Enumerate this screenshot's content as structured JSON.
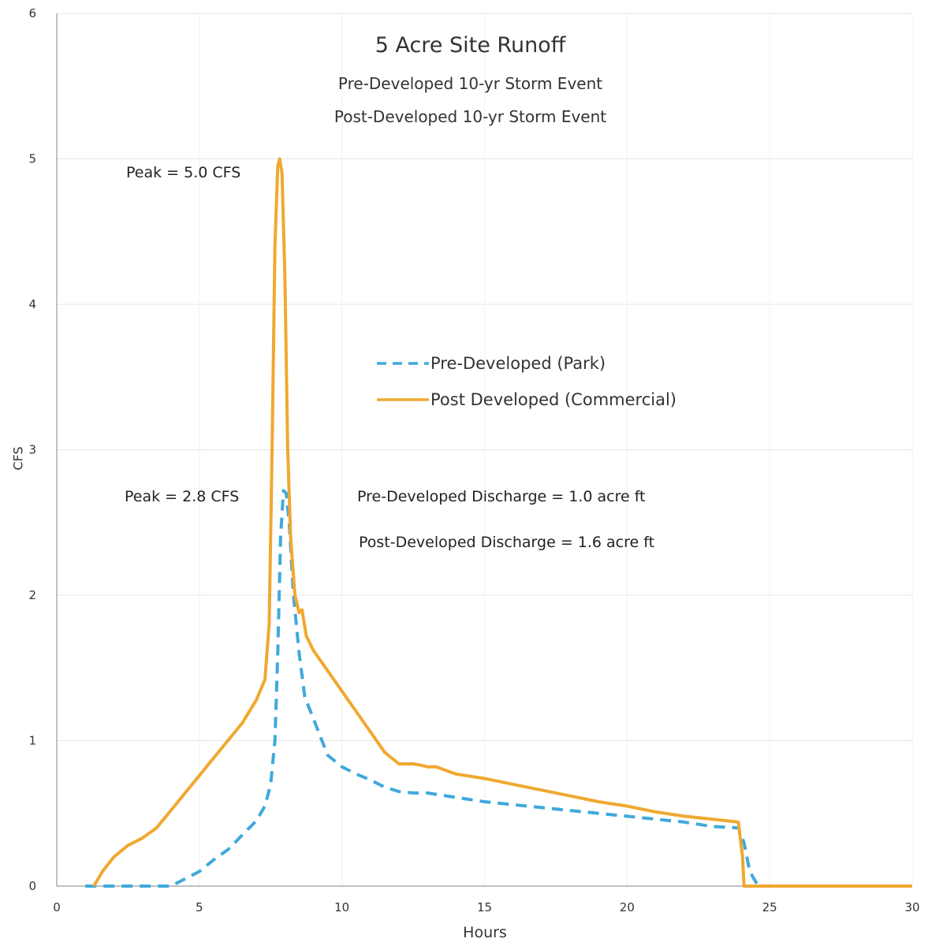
{
  "chart_data": {
    "type": "line",
    "title": "5 Acre Site Runoff",
    "subtitle_lines": [
      "Pre-Developed 10-yr Storm Event",
      "Post-Developed 10-yr Storm Event"
    ],
    "xlabel": "Hours",
    "ylabel": "CFS",
    "xlim": [
      0,
      30
    ],
    "ylim": [
      0,
      6
    ],
    "x_ticks": [
      "0",
      "5",
      "10",
      "15",
      "20",
      "25",
      "30"
    ],
    "y_ticks": [
      "0",
      "1",
      "2",
      "3",
      "4",
      "5",
      "6"
    ],
    "grid": true,
    "legend_position": "center-right",
    "series": [
      {
        "name": "Pre-Developed (Park)",
        "color": "#3fa9dd",
        "style": "dashed",
        "points": [
          [
            1,
            0
          ],
          [
            2,
            0
          ],
          [
            3,
            0
          ],
          [
            4,
            0
          ],
          [
            4.5,
            0.05
          ],
          [
            5,
            0.1
          ],
          [
            5.5,
            0.18
          ],
          [
            6,
            0.25
          ],
          [
            6.5,
            0.35
          ],
          [
            7,
            0.45
          ],
          [
            7.3,
            0.55
          ],
          [
            7.5,
            0.7
          ],
          [
            7.65,
            1.0
          ],
          [
            7.75,
            1.6
          ],
          [
            7.85,
            2.4
          ],
          [
            7.95,
            2.72
          ],
          [
            8.05,
            2.7
          ],
          [
            8.15,
            2.5
          ],
          [
            8.3,
            2.0
          ],
          [
            8.5,
            1.6
          ],
          [
            8.7,
            1.3
          ],
          [
            9,
            1.15
          ],
          [
            9.5,
            0.9
          ],
          [
            10,
            0.82
          ],
          [
            10.5,
            0.77
          ],
          [
            11,
            0.73
          ],
          [
            11.5,
            0.68
          ],
          [
            12,
            0.65
          ],
          [
            12.5,
            0.64
          ],
          [
            13,
            0.64
          ],
          [
            14,
            0.61
          ],
          [
            15,
            0.58
          ],
          [
            16,
            0.56
          ],
          [
            17,
            0.54
          ],
          [
            18,
            0.52
          ],
          [
            19,
            0.5
          ],
          [
            20,
            0.48
          ],
          [
            21,
            0.46
          ],
          [
            22,
            0.44
          ],
          [
            23,
            0.41
          ],
          [
            23.9,
            0.4
          ],
          [
            24.1,
            0.3
          ],
          [
            24.3,
            0.1
          ],
          [
            24.6,
            0
          ],
          [
            25,
            0
          ],
          [
            30,
            0
          ]
        ]
      },
      {
        "name": "Post Developed (Commercial)",
        "color": "#f0a830",
        "style": "solid",
        "points": [
          [
            1.3,
            0
          ],
          [
            1.6,
            0.1
          ],
          [
            2,
            0.2
          ],
          [
            2.5,
            0.28
          ],
          [
            3,
            0.33
          ],
          [
            3.5,
            0.4
          ],
          [
            4,
            0.52
          ],
          [
            4.5,
            0.64
          ],
          [
            5,
            0.76
          ],
          [
            5.5,
            0.88
          ],
          [
            6,
            1.0
          ],
          [
            6.5,
            1.12
          ],
          [
            7,
            1.28
          ],
          [
            7.3,
            1.42
          ],
          [
            7.45,
            1.8
          ],
          [
            7.55,
            3.0
          ],
          [
            7.65,
            4.4
          ],
          [
            7.75,
            4.95
          ],
          [
            7.82,
            5.0
          ],
          [
            7.9,
            4.9
          ],
          [
            8.0,
            4.2
          ],
          [
            8.1,
            3.0
          ],
          [
            8.2,
            2.4
          ],
          [
            8.35,
            2.0
          ],
          [
            8.5,
            1.88
          ],
          [
            8.6,
            1.9
          ],
          [
            8.75,
            1.72
          ],
          [
            9,
            1.62
          ],
          [
            9.5,
            1.48
          ],
          [
            10,
            1.34
          ],
          [
            10.5,
            1.2
          ],
          [
            11,
            1.06
          ],
          [
            11.5,
            0.92
          ],
          [
            12,
            0.84
          ],
          [
            12.5,
            0.84
          ],
          [
            12.8,
            0.83
          ],
          [
            13,
            0.82
          ],
          [
            13.3,
            0.82
          ],
          [
            14,
            0.77
          ],
          [
            15,
            0.74
          ],
          [
            16,
            0.7
          ],
          [
            17,
            0.66
          ],
          [
            18,
            0.62
          ],
          [
            19,
            0.58
          ],
          [
            20,
            0.55
          ],
          [
            21,
            0.51
          ],
          [
            22,
            0.48
          ],
          [
            23,
            0.46
          ],
          [
            23.9,
            0.44
          ],
          [
            24.05,
            0.2
          ],
          [
            24.1,
            0
          ],
          [
            25,
            0
          ],
          [
            30,
            0
          ]
        ]
      }
    ],
    "annotations": [
      {
        "text": "Peak = 5.0 CFS"
      },
      {
        "text": "Peak = 2.8 CFS"
      },
      {
        "text": "Pre-Developed Discharge = 1.0 acre ft"
      },
      {
        "text": "Post-Developed Discharge = 1.6 acre ft"
      }
    ]
  }
}
